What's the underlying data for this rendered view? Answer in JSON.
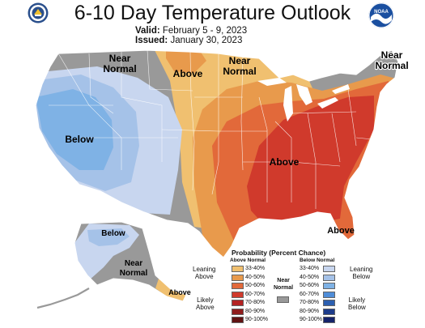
{
  "header": {
    "title": "6-10 Day Temperature Outlook",
    "valid_label": "Valid:",
    "valid_value": "February 5 - 9, 2023",
    "issued_label": "Issued:",
    "issued_value": "January 30, 2023",
    "logo_text": "NOAA"
  },
  "map_labels": {
    "near_normal_north_1": "Near",
    "near_normal_north_2": "Normal",
    "above_north": "Above",
    "near_normal_lakes_1": "Near",
    "near_normal_lakes_2": "Normal",
    "near_normal_ne_1": "Near",
    "near_normal_ne_2": "Normal",
    "below_west": "Below",
    "above_southeast": "Above",
    "above_florida": "Above",
    "below_alaska": "Below",
    "near_normal_alaska_1": "Near",
    "near_normal_alaska_2": "Normal",
    "above_aleutians": "Above"
  },
  "legend": {
    "title": "Probability (Percent Chance)",
    "above_header": "Above Normal",
    "below_header": "Below Normal",
    "near_normal_1": "Near",
    "near_normal_2": "Normal",
    "leaning_above_1": "Leaning",
    "leaning_above_2": "Above",
    "likely_above_1": "Likely",
    "likely_above_2": "Above",
    "leaning_below_1": "Leaning",
    "leaning_below_2": "Below",
    "likely_below_1": "Likely",
    "likely_below_2": "Below",
    "above_ranges": [
      "33-40%",
      "40-50%",
      "50-60%",
      "60-70%",
      "70-80%",
      "80-90%",
      "90-100%"
    ],
    "below_ranges": [
      "33-40%",
      "40-50%",
      "50-60%",
      "60-70%",
      "70-80%",
      "80-90%",
      "90-100%"
    ],
    "above_colors": [
      "#f0c070",
      "#e89a4c",
      "#e2693a",
      "#d03a2c",
      "#b42222",
      "#8f1d1d",
      "#611313"
    ],
    "below_colors": [
      "#c8d6ef",
      "#a5c2e8",
      "#7fb2e5",
      "#4f8dd8",
      "#2c5fb0",
      "#1d3c8a",
      "#15236a"
    ],
    "near_color": "#999999"
  }
}
